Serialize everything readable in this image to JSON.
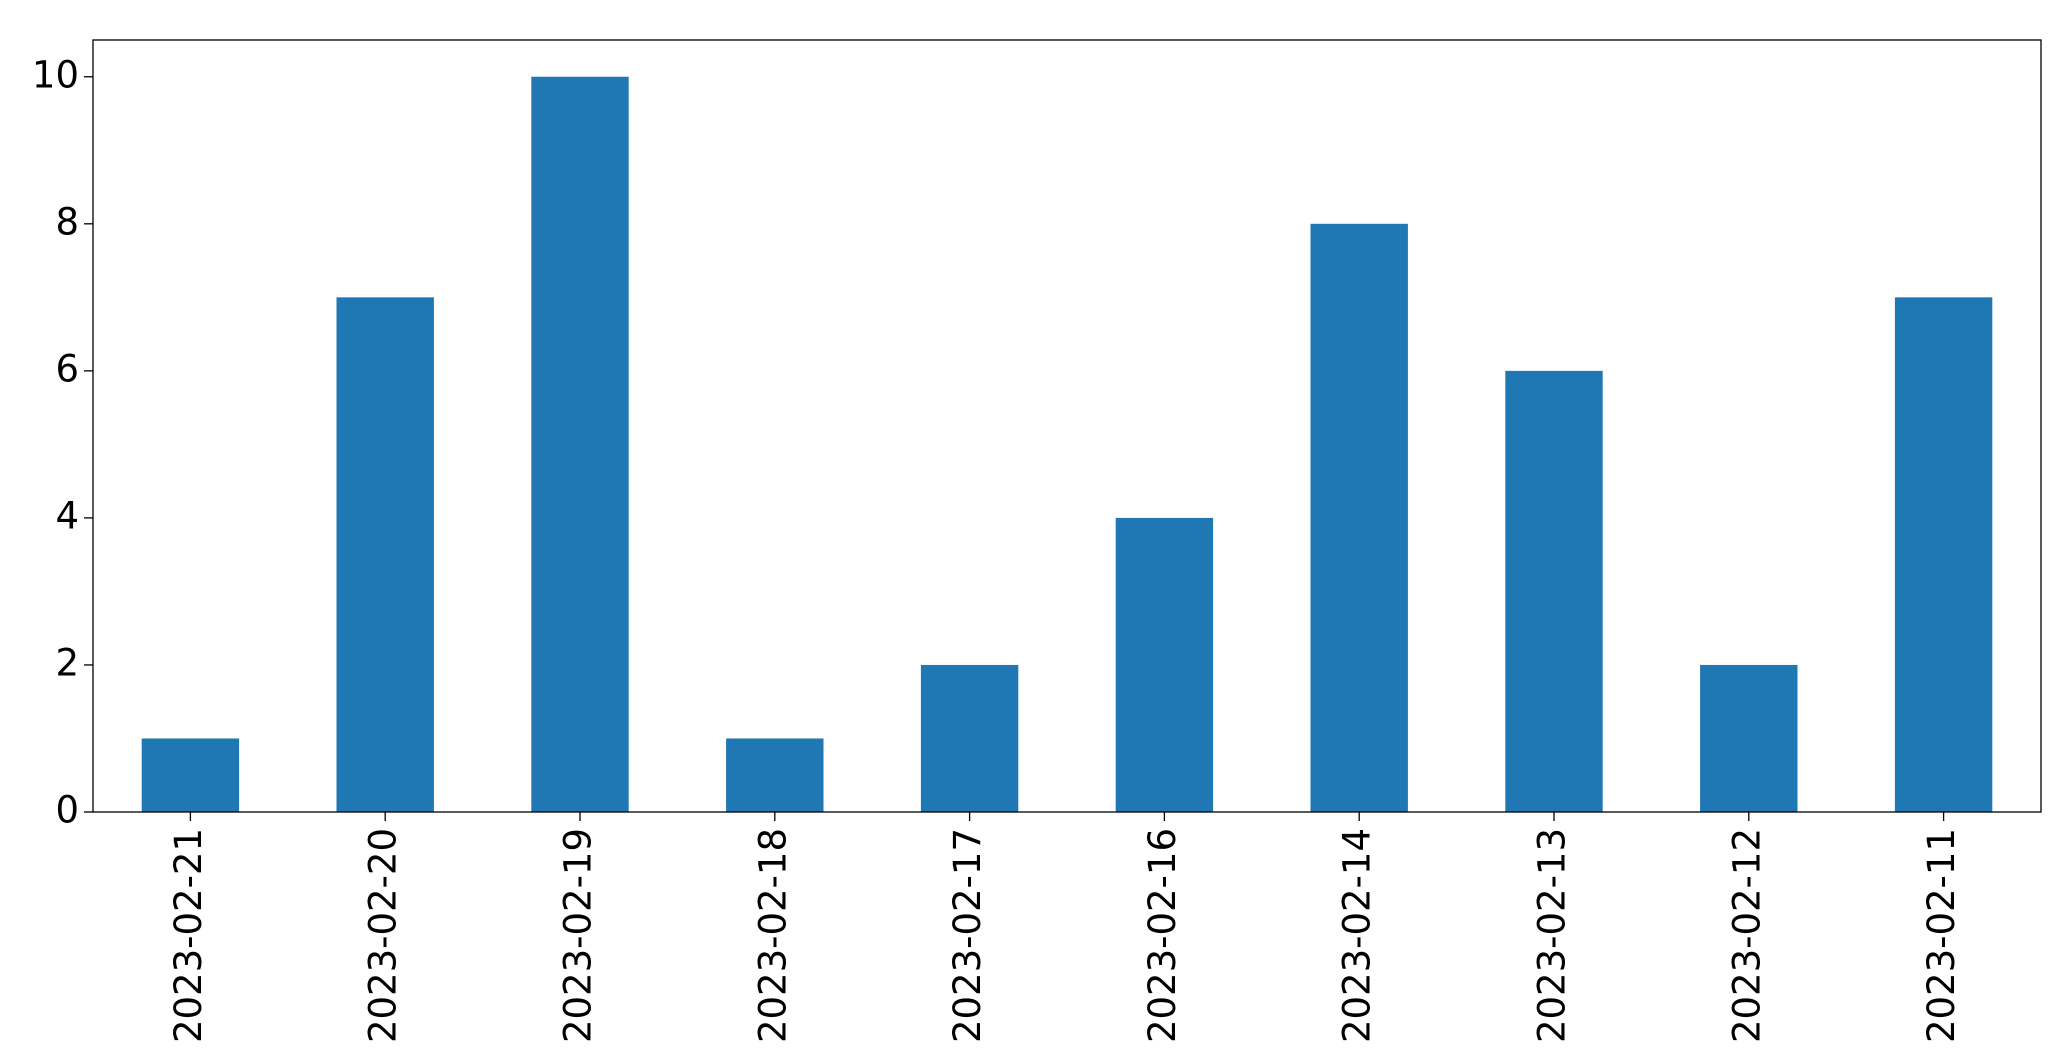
{
  "chart_data": {
    "type": "bar",
    "categories": [
      "2023-02-21",
      "2023-02-20",
      "2023-02-19",
      "2023-02-18",
      "2023-02-17",
      "2023-02-16",
      "2023-02-14",
      "2023-02-13",
      "2023-02-12",
      "2023-02-11"
    ],
    "values": [
      1,
      7,
      10,
      1,
      2,
      4,
      8,
      6,
      2,
      7
    ],
    "color": "#1f77b4",
    "ylim": [
      0,
      10.5
    ],
    "yticks": [
      0,
      2,
      4,
      6,
      8,
      10
    ],
    "grid": false
  }
}
